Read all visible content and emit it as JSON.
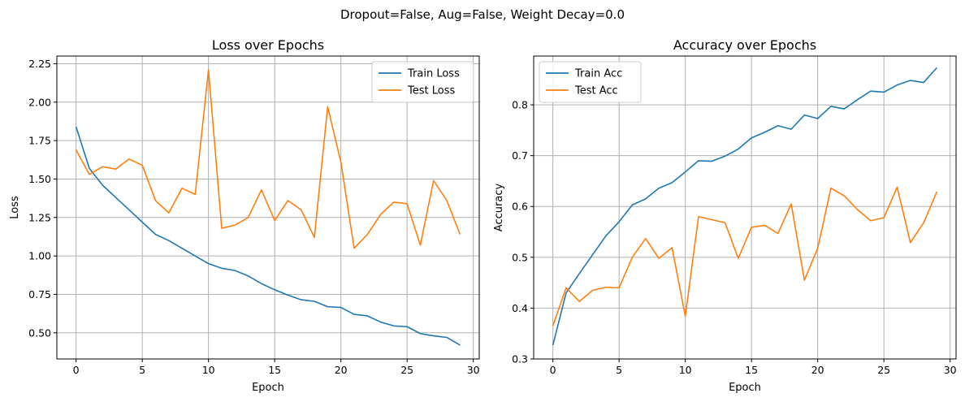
{
  "suptitle": "Dropout=False, Aug=False, Weight Decay=0.0",
  "colors": {
    "train": "#1f77b4",
    "test": "#ff7f0e",
    "grid": "#b0b0b0"
  },
  "chart_data": [
    {
      "type": "line",
      "title": "Loss over Epochs",
      "xlabel": "Epoch",
      "ylabel": "Loss",
      "xlim": [
        -1.45,
        30.45
      ],
      "ylim": [
        0.33,
        2.3
      ],
      "xticks": [
        0,
        5,
        10,
        15,
        20,
        25,
        30
      ],
      "yticks": [
        0.5,
        0.75,
        1.0,
        1.25,
        1.5,
        1.75,
        2.0,
        2.25
      ],
      "ytick_labels": [
        "0.50",
        "0.75",
        "1.00",
        "1.25",
        "1.50",
        "1.75",
        "2.00",
        "2.25"
      ],
      "grid": true,
      "legend": "upper right",
      "x": [
        0,
        1,
        2,
        3,
        4,
        5,
        6,
        7,
        8,
        9,
        10,
        11,
        12,
        13,
        14,
        15,
        16,
        17,
        18,
        19,
        20,
        21,
        22,
        23,
        24,
        25,
        26,
        27,
        28,
        29
      ],
      "series": [
        {
          "name": "Train Loss",
          "color": "#1f77b4",
          "values": [
            1.84,
            1.57,
            1.46,
            1.38,
            1.3,
            1.22,
            1.14,
            1.1,
            1.05,
            1.0,
            0.95,
            0.92,
            0.905,
            0.87,
            0.82,
            0.78,
            0.745,
            0.715,
            0.705,
            0.67,
            0.665,
            0.62,
            0.61,
            0.57,
            0.545,
            0.54,
            0.495,
            0.48,
            0.47,
            0.42
          ]
        },
        {
          "name": "Test Loss",
          "color": "#ff7f0e",
          "values": [
            1.69,
            1.53,
            1.58,
            1.565,
            1.63,
            1.59,
            1.36,
            1.28,
            1.44,
            1.4,
            2.21,
            1.18,
            1.2,
            1.25,
            1.43,
            1.23,
            1.36,
            1.3,
            1.12,
            1.97,
            1.61,
            1.05,
            1.14,
            1.27,
            1.35,
            1.34,
            1.07,
            1.49,
            1.36,
            1.14
          ]
        }
      ]
    },
    {
      "type": "line",
      "title": "Accuracy over Epochs",
      "xlabel": "Epoch",
      "ylabel": "Accuracy",
      "xlim": [
        -1.45,
        30.45
      ],
      "ylim": [
        0.3,
        0.896
      ],
      "xticks": [
        0,
        5,
        10,
        15,
        20,
        25,
        30
      ],
      "yticks": [
        0.3,
        0.4,
        0.5,
        0.6,
        0.7,
        0.8
      ],
      "ytick_labels": [
        "0.3",
        "0.4",
        "0.5",
        "0.6",
        "0.7",
        "0.8"
      ],
      "grid": true,
      "legend": "upper left",
      "x": [
        0,
        1,
        2,
        3,
        4,
        5,
        6,
        7,
        8,
        9,
        10,
        11,
        12,
        13,
        14,
        15,
        16,
        17,
        18,
        19,
        20,
        21,
        22,
        23,
        24,
        25,
        26,
        27,
        28,
        29
      ],
      "series": [
        {
          "name": "Train Acc",
          "color": "#1f77b4",
          "values": [
            0.327,
            0.43,
            0.468,
            0.505,
            0.542,
            0.57,
            0.603,
            0.615,
            0.636,
            0.647,
            0.668,
            0.69,
            0.689,
            0.699,
            0.713,
            0.735,
            0.746,
            0.759,
            0.752,
            0.78,
            0.773,
            0.797,
            0.792,
            0.81,
            0.827,
            0.825,
            0.839,
            0.848,
            0.844,
            0.873
          ]
        },
        {
          "name": "Test Acc",
          "color": "#ff7f0e",
          "values": [
            0.365,
            0.44,
            0.413,
            0.435,
            0.441,
            0.44,
            0.5,
            0.537,
            0.498,
            0.519,
            0.384,
            0.58,
            0.574,
            0.568,
            0.498,
            0.559,
            0.563,
            0.547,
            0.605,
            0.455,
            0.518,
            0.636,
            0.621,
            0.594,
            0.572,
            0.578,
            0.638,
            0.529,
            0.568,
            0.629
          ]
        }
      ]
    }
  ]
}
